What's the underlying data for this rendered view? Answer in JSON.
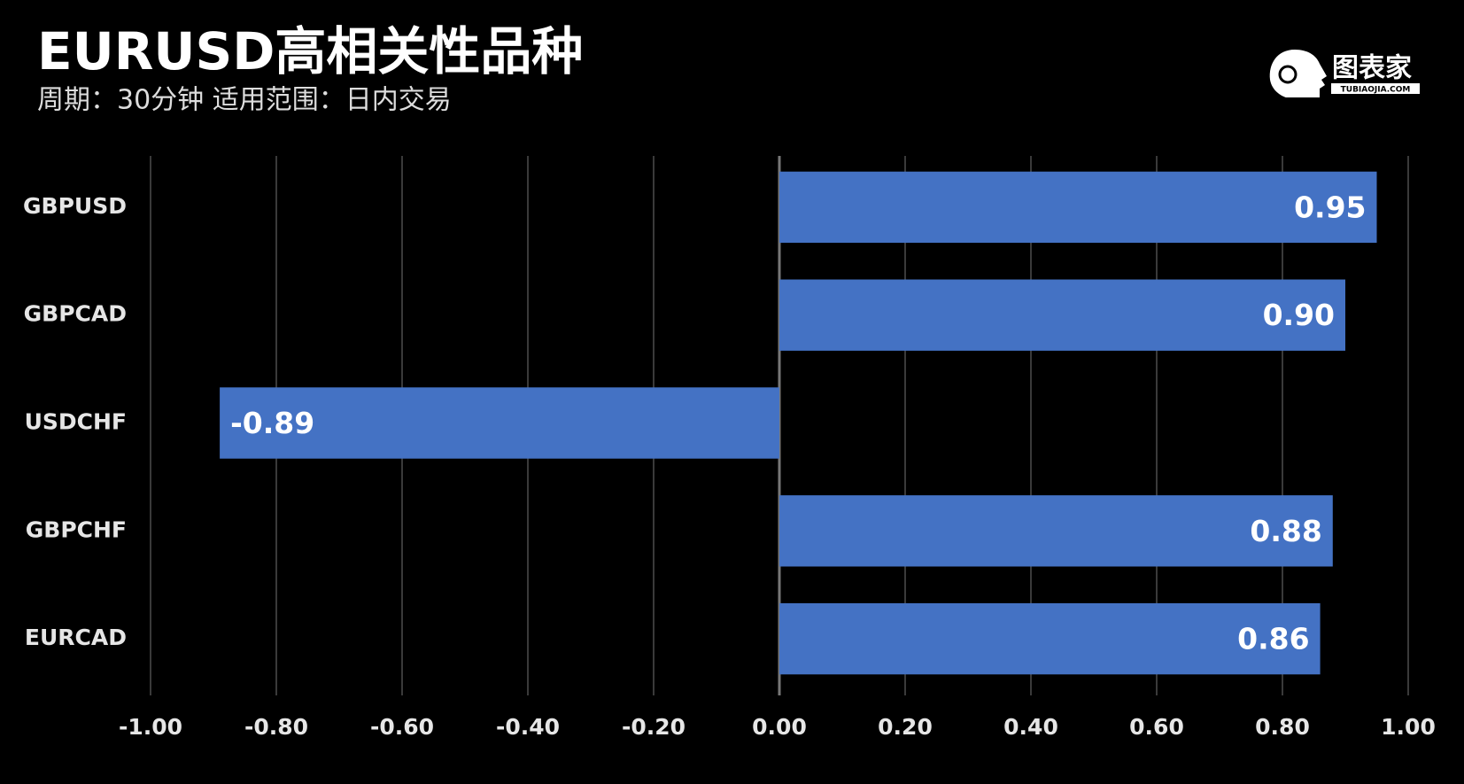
{
  "chart_data": {
    "type": "barh",
    "title": "EURUSD高相关性品种",
    "subtitle": "周期：30分钟  适用范围：日内交易",
    "logo": {
      "name": "图表家",
      "site": "TUBIAOJIA.COM"
    },
    "categories": [
      "GBPUSD",
      "GBPCAD",
      "USDCHF",
      "GBPCHF",
      "EURCAD"
    ],
    "values": [
      0.95,
      0.9,
      -0.89,
      0.88,
      0.86
    ],
    "value_labels": [
      "0.95",
      "0.90",
      "-0.89",
      "0.88",
      "0.86"
    ],
    "color": "#4472c4",
    "xlim": [
      -1,
      1
    ],
    "xticks": [
      {
        "value": -1,
        "label": "-1.00"
      },
      {
        "value": -0.8,
        "label": "-0.80"
      },
      {
        "value": -0.6,
        "label": "-0.60"
      },
      {
        "value": -0.4,
        "label": "-0.40"
      },
      {
        "value": -0.2,
        "label": "-0.20"
      },
      {
        "value": 0,
        "label": "0.00"
      },
      {
        "value": 0.2,
        "label": "0.20"
      },
      {
        "value": 0.4,
        "label": "0.40"
      },
      {
        "value": 0.6,
        "label": "0.60"
      },
      {
        "value": 0.8,
        "label": "0.80"
      },
      {
        "value": 1,
        "label": "1.00"
      }
    ],
    "grid": true
  }
}
